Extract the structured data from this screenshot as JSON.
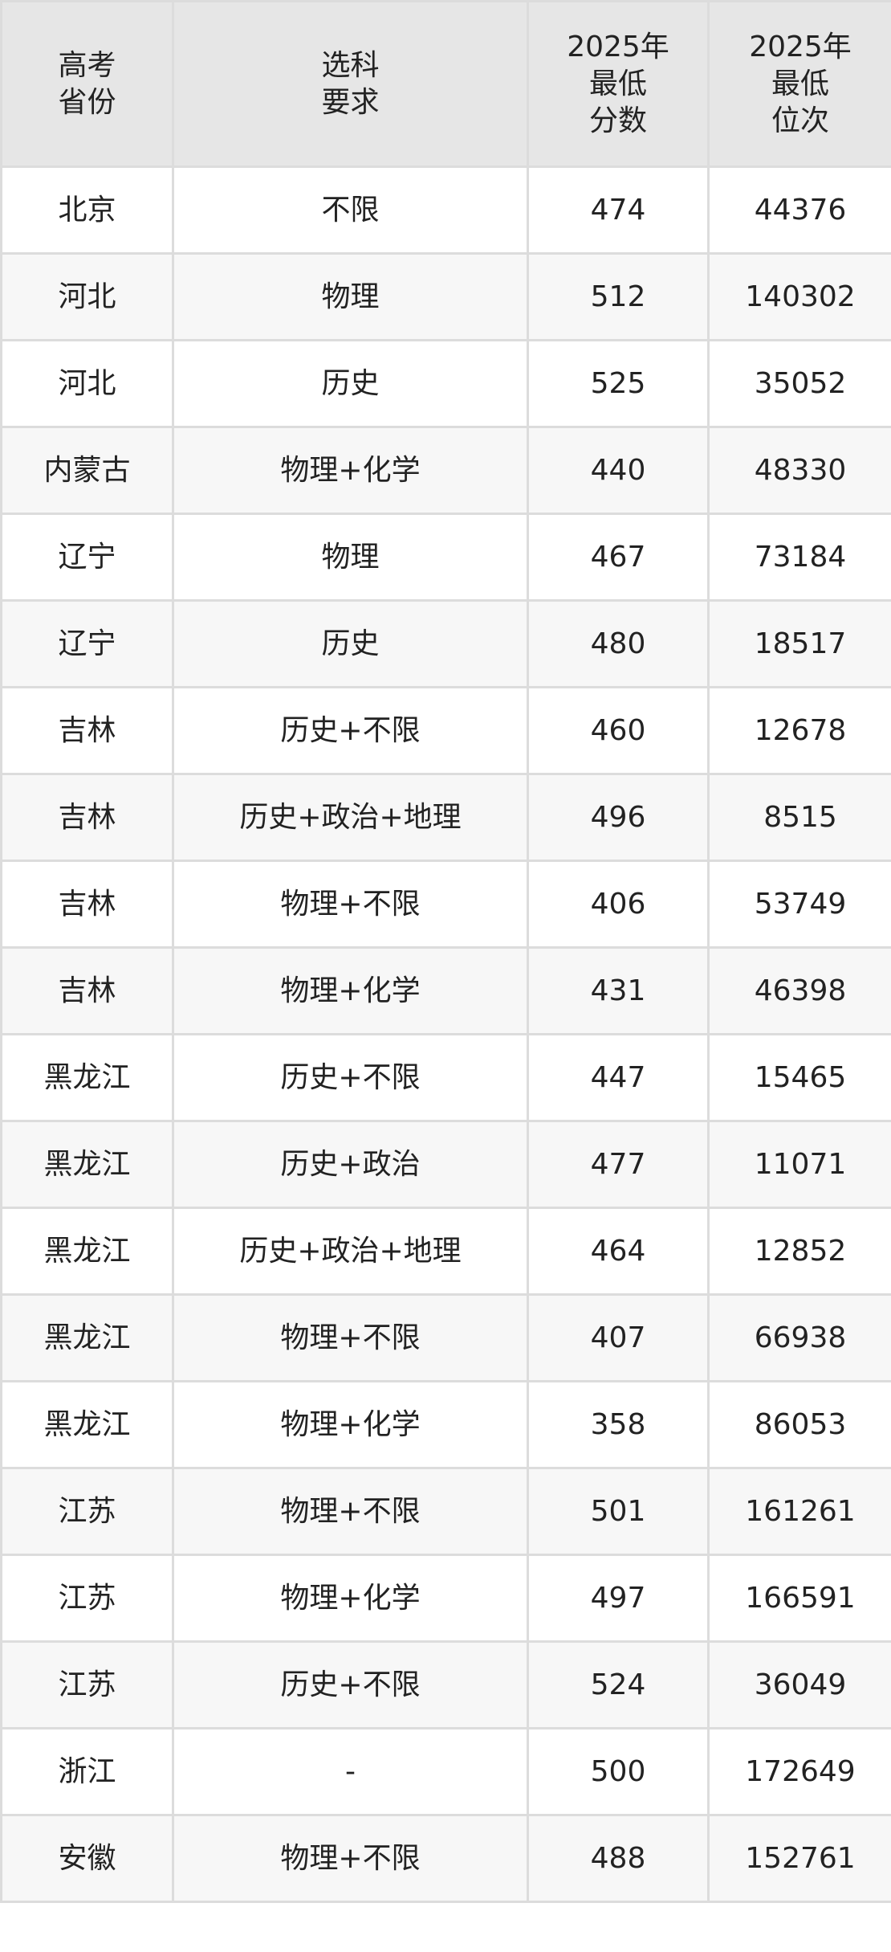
{
  "headers": [
    [
      "高考",
      "省份"
    ],
    [
      "选科",
      "要求"
    ],
    [
      "2025年",
      "最低",
      "分数"
    ],
    [
      "2025年",
      "最低",
      "位次"
    ]
  ],
  "rows": [
    [
      "北京",
      "不限",
      "474",
      "44376"
    ],
    [
      "河北",
      "物理",
      "512",
      "140302"
    ],
    [
      "河北",
      "历史",
      "525",
      "35052"
    ],
    [
      "内蒙古",
      "物理+化学",
      "440",
      "48330"
    ],
    [
      "辽宁",
      "物理",
      "467",
      "73184"
    ],
    [
      "辽宁",
      "历史",
      "480",
      "18517"
    ],
    [
      "吉林",
      "历史+不限",
      "460",
      "12678"
    ],
    [
      "吉林",
      "历史+政治+地理",
      "496",
      "8515"
    ],
    [
      "吉林",
      "物理+不限",
      "406",
      "53749"
    ],
    [
      "吉林",
      "物理+化学",
      "431",
      "46398"
    ],
    [
      "黑龙江",
      "历史+不限",
      "447",
      "15465"
    ],
    [
      "黑龙江",
      "历史+政治",
      "477",
      "11071"
    ],
    [
      "黑龙江",
      "历史+政治+地理",
      "464",
      "12852"
    ],
    [
      "黑龙江",
      "物理+不限",
      "407",
      "66938"
    ],
    [
      "黑龙江",
      "物理+化学",
      "358",
      "86053"
    ],
    [
      "江苏",
      "物理+不限",
      "501",
      "161261"
    ],
    [
      "江苏",
      "物理+化学",
      "497",
      "166591"
    ],
    [
      "江苏",
      "历史+不限",
      "524",
      "36049"
    ],
    [
      "浙江",
      "-",
      "500",
      "172649"
    ],
    [
      "安徽",
      "物理+不限",
      "488",
      "152761"
    ]
  ]
}
